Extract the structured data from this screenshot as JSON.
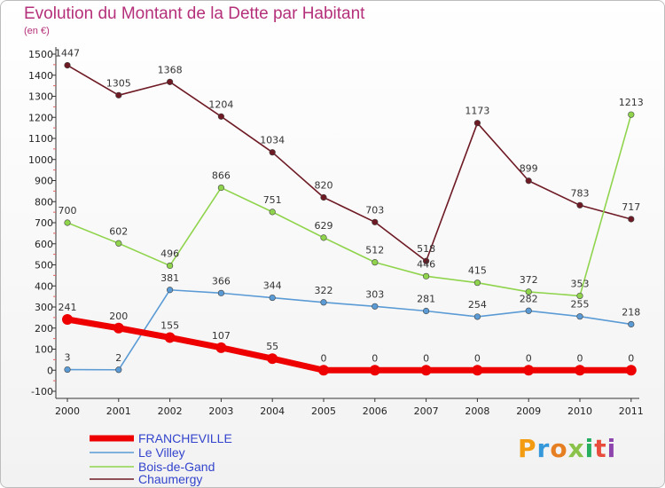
{
  "chart_data": {
    "type": "line",
    "title": "Evolution du Montant de la Dette par Habitant",
    "subtitle": "(en €)",
    "categories": [
      "2000",
      "2001",
      "2002",
      "2003",
      "2004",
      "2005",
      "2006",
      "2007",
      "2008",
      "2009",
      "2010",
      "2011"
    ],
    "ylim": [
      -100,
      1500
    ],
    "yticks": [
      -100,
      0,
      100,
      200,
      300,
      400,
      500,
      600,
      700,
      800,
      900,
      1000,
      1100,
      1200,
      1300,
      1400,
      1500
    ],
    "grid": false,
    "legend_position": "bottom-left",
    "series": [
      {
        "name": "FRANCHEVILLE",
        "color": "#ee0000",
        "values": [
          241,
          200,
          155,
          107,
          55,
          0,
          0,
          0,
          0,
          0,
          0,
          0
        ]
      },
      {
        "name": "Le Villey",
        "color": "#5b9bd5",
        "values": [
          3,
          2,
          381,
          366,
          344,
          322,
          303,
          281,
          254,
          282,
          255,
          218
        ]
      },
      {
        "name": "Bois-de-Gand",
        "color": "#8fd44c",
        "values": [
          700,
          602,
          496,
          866,
          751,
          629,
          512,
          446,
          415,
          372,
          353,
          1213
        ]
      },
      {
        "name": "Chaumergy",
        "color": "#6e1a24",
        "values": [
          1447,
          1305,
          1368,
          1204,
          1034,
          820,
          703,
          518,
          1173,
          899,
          783,
          717
        ]
      }
    ]
  },
  "brand": {
    "text": "Proxiti",
    "colors": [
      "#f39c12",
      "#3498db",
      "#e67e22",
      "#8bc34a",
      "#27ae60",
      "#e74c3c",
      "#8e44ad"
    ]
  }
}
